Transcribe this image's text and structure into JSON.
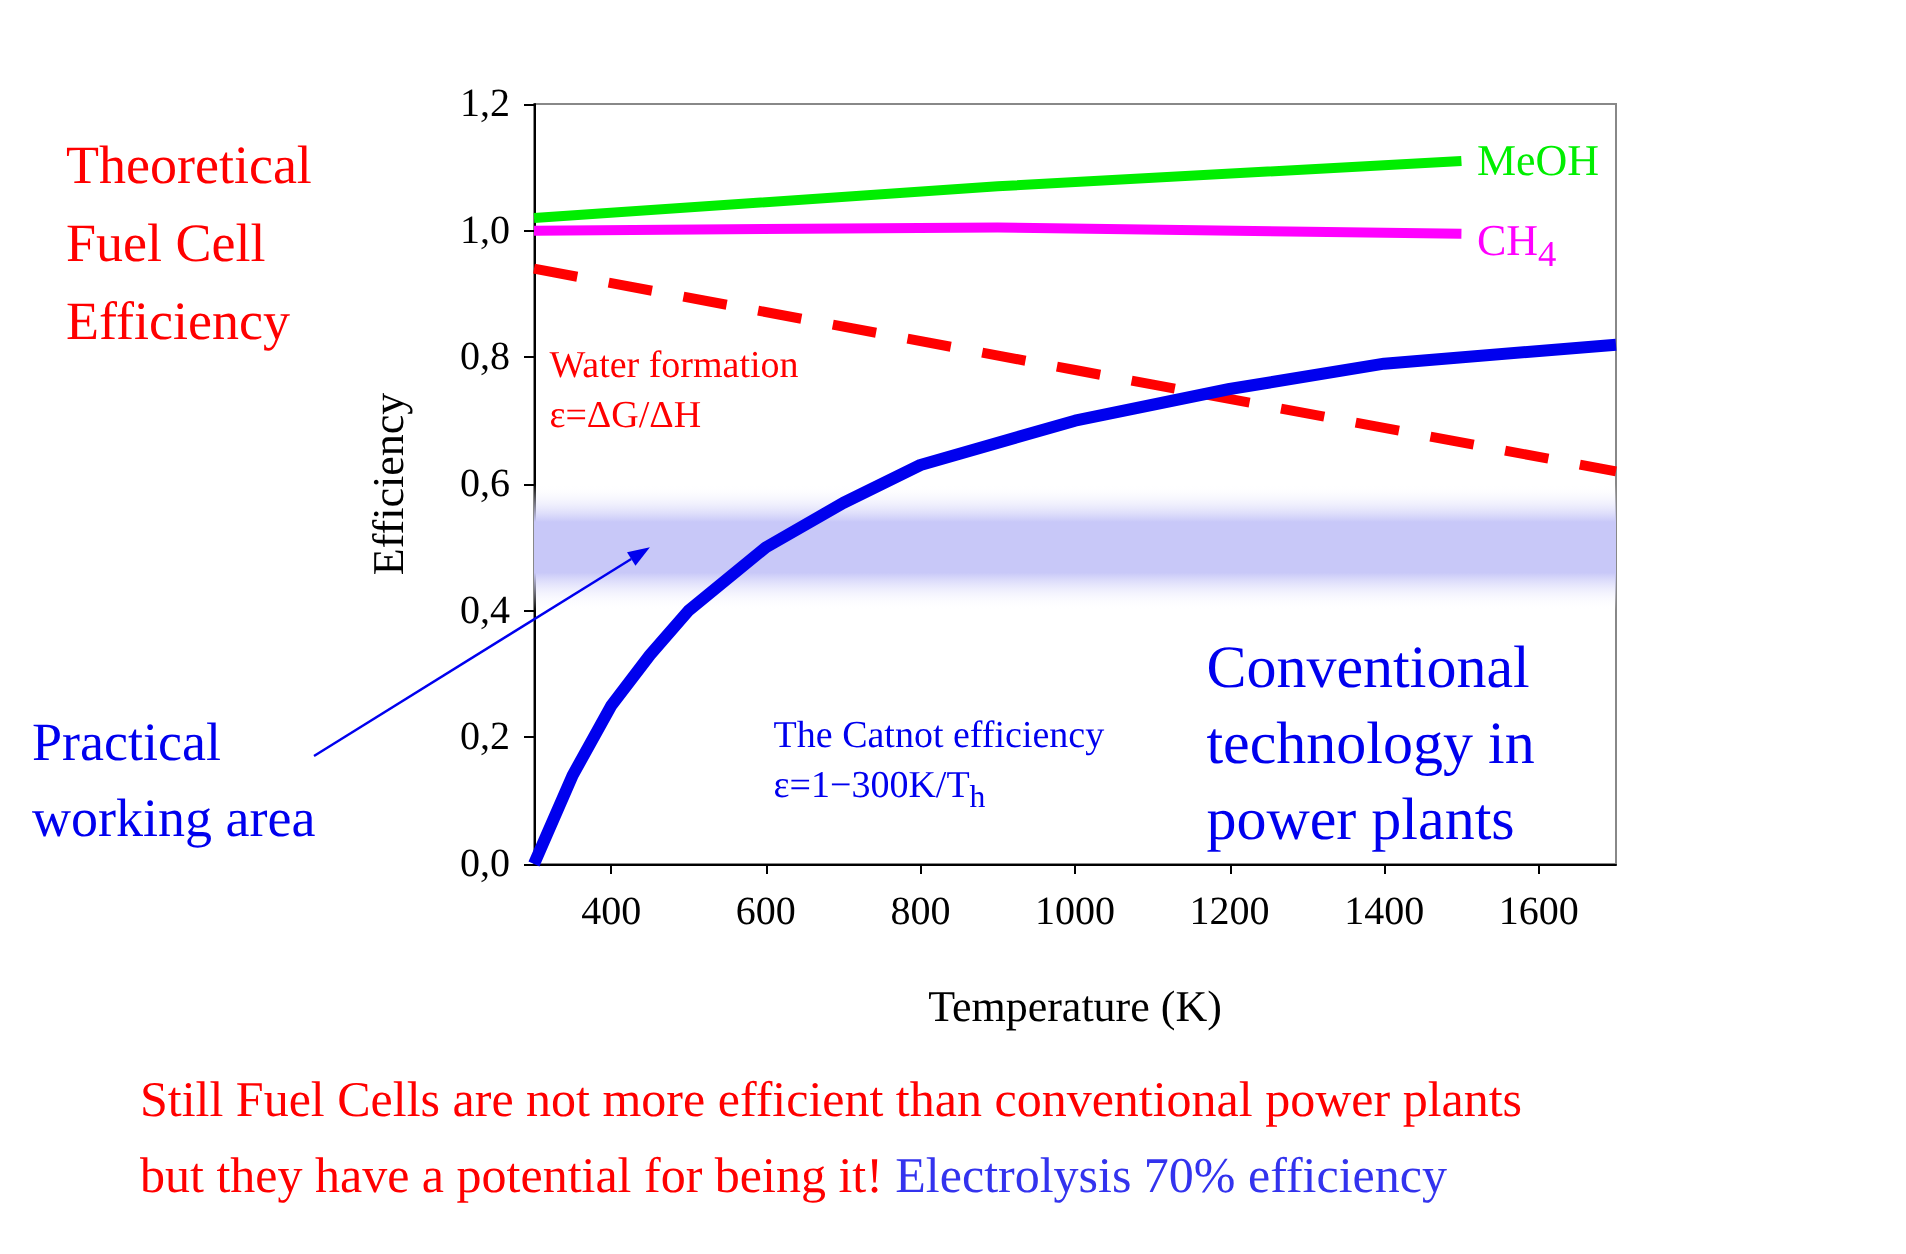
{
  "chart_data": {
    "type": "line",
    "title": "Theoretical Fuel Cell Efficiency",
    "xlabel": "Temperature (K)",
    "ylabel": "Efficiency",
    "xlim": [
      300,
      1700
    ],
    "xticks": [
      400,
      600,
      800,
      1000,
      1200,
      1400,
      1600
    ],
    "ylim": [
      0,
      1.2
    ],
    "yticks": [
      {
        "value": 0,
        "label": "0,0"
      },
      {
        "value": 0.2,
        "label": "0,2"
      },
      {
        "value": 0.4,
        "label": "0,4"
      },
      {
        "value": 0.6,
        "label": "0,6"
      },
      {
        "value": 0.8,
        "label": "0,8"
      },
      {
        "value": 1,
        "label": "1,0"
      },
      {
        "value": 1.2,
        "label": "1,2"
      }
    ],
    "grid": false,
    "legend": false,
    "marker": "none",
    "series": [
      {
        "name": "MeOH",
        "color": "#00ee00",
        "x": [
          300,
          900,
          1500
        ],
        "values": [
          1.02,
          1.07,
          1.11
        ]
      },
      {
        "name": "CH$_{4}$",
        "color": "#ff00ff",
        "x": [
          300,
          900,
          1500
        ],
        "values": [
          1.0,
          1.005,
          0.995
        ]
      },
      {
        "name": "Water formation ε=ΔG/ΔH",
        "color": "#ff0000",
        "line_style": "dashed",
        "x": [
          300,
          1000,
          1700
        ],
        "values": [
          0.94,
          0.78,
          0.62
        ]
      },
      {
        "name": "The Catnot efficiency ε=1−300K/T$_{h}$",
        "color": "#0000ee",
        "x": [
          300,
          350,
          400,
          450,
          500,
          600,
          700,
          800,
          1000,
          1200,
          1400,
          1700
        ],
        "values": [
          0,
          0.14,
          0.25,
          0.33,
          0.4,
          0.5,
          0.57,
          0.63,
          0.7,
          0.75,
          0.79,
          0.82
        ]
      }
    ],
    "bands": [
      {
        "axis": "y",
        "from": 0.4,
        "to": 0.6,
        "label": "Practical working area",
        "color": "#c8c8f8"
      }
    ],
    "annotations": [
      "Conventional technology in power plants",
      "Still Fuel Cells are not more efficient than conventional power plants",
      "but they have a potential for being it!",
      "Electrolysis 70% efficiency"
    ]
  }
}
